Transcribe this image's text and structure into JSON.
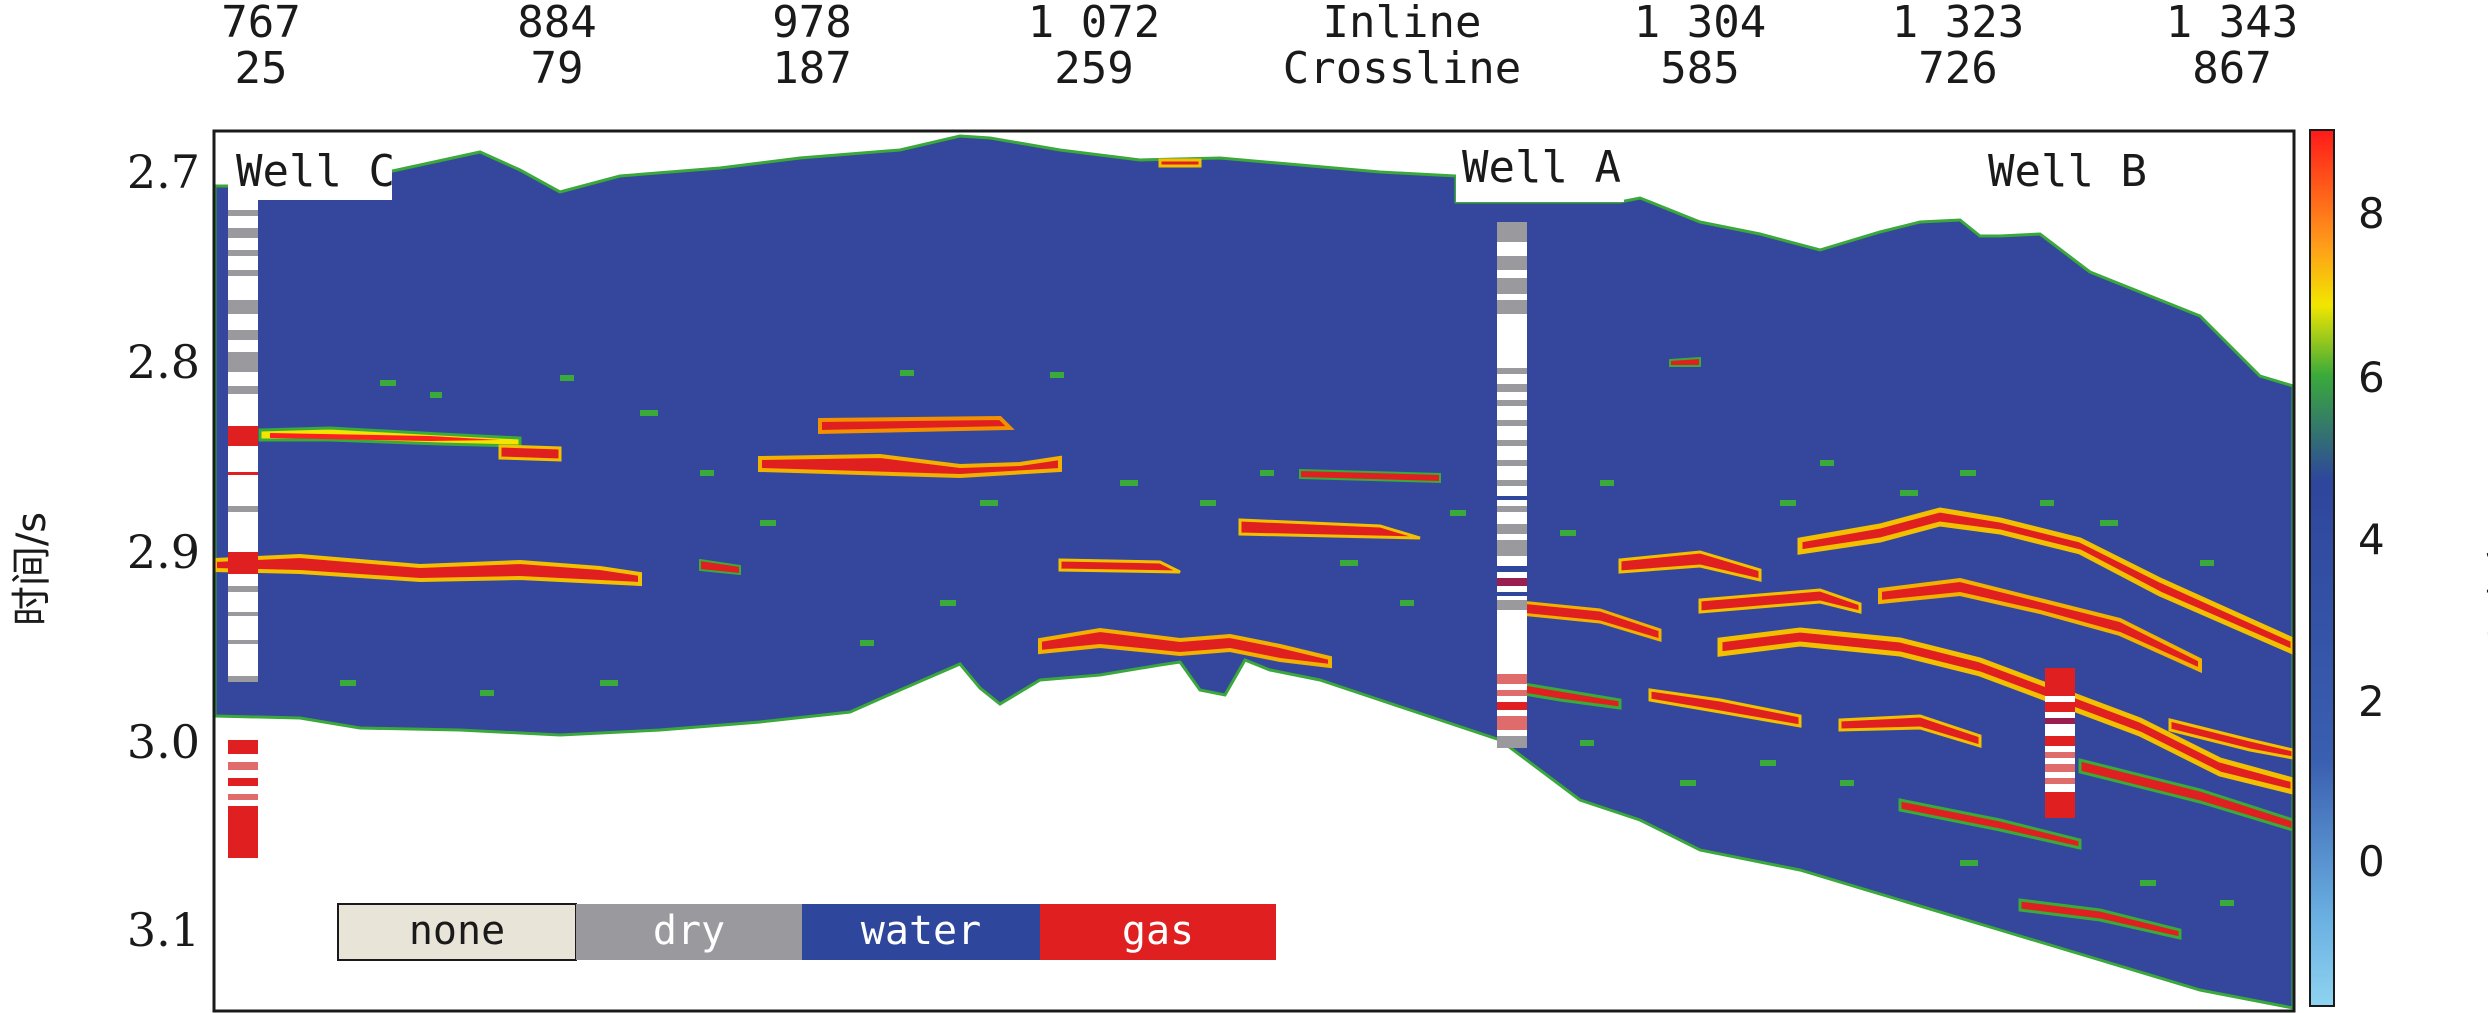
{
  "chart_data": {
    "type": "heatmap",
    "header_rows": {
      "inline_values": [
        "767",
        "884",
        "978",
        "1 072",
        "Inline",
        "1 304",
        "1 323",
        "1 343"
      ],
      "crossline_values": [
        "25",
        "79",
        "187",
        "259",
        "Crossline",
        "585",
        "726",
        "867"
      ]
    },
    "ylabel": "时间/s",
    "y_ticks": [
      "2.7",
      "2.8",
      "2.9",
      "3.0",
      "3.1"
    ],
    "ylim": [
      2.67,
      3.14
    ],
    "colorbar": {
      "label": "孔隙度/%",
      "ticks": [
        "8",
        "6",
        "4",
        "2",
        "0"
      ],
      "range": [
        -1.8,
        8.8
      ],
      "colors": [
        "#ff1a1a",
        "#ff9a1a",
        "#f2e600",
        "#3aaa3a",
        "#2e469c",
        "#6ab0e2",
        "#8fd3f0"
      ]
    },
    "wells": [
      {
        "name": "Well C",
        "inline": 767,
        "crossline": 25
      },
      {
        "name": "Well A",
        "inline": 1304,
        "crossline": 585
      },
      {
        "name": "Well B",
        "inline": 1323,
        "crossline": 726
      }
    ],
    "legend": {
      "placement": "bottom-left",
      "items": [
        {
          "label": "none",
          "color": "#e8e4d8"
        },
        {
          "label": "dry",
          "color": "#9a9a9e"
        },
        {
          "label": "water",
          "color": "#2e469c"
        },
        {
          "label": "gas",
          "color": "#e02020"
        }
      ]
    },
    "background_porosity_color": "#34479c"
  }
}
